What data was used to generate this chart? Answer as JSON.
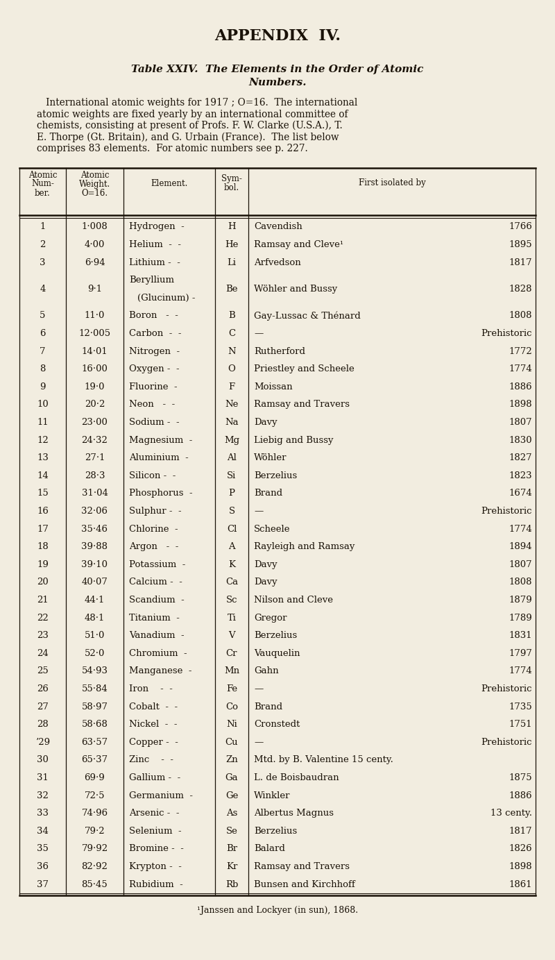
{
  "bg_color": "#f2ede0",
  "text_color": "#1a1208",
  "appendix_title": "APPENDIX  IV.",
  "table_title_line1": "Table XXIV.  The Elements in the Order of Atomic",
  "table_title_line2": "Numbers.",
  "intro_line1": "   International atomic weights for 1917 ; O=16.  The international",
  "intro_line2": "atomic weights are fixed yearly by an international committee of",
  "intro_line3": "chemists, consisting at present of Profs. F. W. Clarke (U.S.A.), T.",
  "intro_line4": "E. Thorpe (Gt. Britain), and G. Urbain (France).  The list below",
  "intro_line5": "comprises 83 elements.  For atomic numbers see p. 227.",
  "col_headers": [
    "Atomic\nNum-\nber.",
    "Atomic\nWeight.\nO=16.",
    "Element.",
    "Sym-\nbol.",
    "First isolated by"
  ],
  "footnote": "¹Janssen and Lockyer (in sun), 1868.",
  "rows": [
    [
      "1",
      "1·008",
      "Hydrogen",
      "-",
      "H",
      "Cavendish",
      "1766"
    ],
    [
      "2",
      "4·00",
      "Helium  -",
      "-",
      "He",
      "Ramsay and Cleve¹",
      "1895"
    ],
    [
      "3",
      "6·94",
      "Lithium -",
      "-",
      "Li",
      "Arfvedson",
      "1817"
    ],
    [
      "4",
      "9·1",
      "Beryllium",
      "",
      "Be",
      "Wöhler and Bussy",
      "1828"
    ],
    [
      "5",
      "11·0",
      "Boron   -",
      "-",
      "B",
      "Gay-Lussac & Thénard",
      "1808"
    ],
    [
      "6",
      "12·005",
      "Carbon  -",
      "-",
      "C",
      "—",
      "Prehistoric"
    ],
    [
      "7",
      "14·01",
      "Nitrogen",
      "-",
      "N",
      "Rutherford",
      "1772"
    ],
    [
      "8",
      "16·00",
      "Oxygen -",
      "-",
      "O",
      "Priestley and Scheele",
      "1774"
    ],
    [
      "9",
      "19·0",
      "Fluorine",
      "-",
      "F",
      "Moissan",
      "1886"
    ],
    [
      "10",
      "20·2",
      "Neon   -",
      "-",
      "Ne",
      "Ramsay and Travers",
      "1898"
    ],
    [
      "11",
      "23·00",
      "Sodium -",
      "-",
      "Na",
      "Davy",
      "1807"
    ],
    [
      "12",
      "24·32",
      "Magnesium",
      "-",
      "Mg",
      "Liebig and Bussy",
      "1830"
    ],
    [
      "13",
      "27·1",
      "Aluminium",
      "-",
      "Al",
      "Wöhler",
      "1827"
    ],
    [
      "14",
      "28·3",
      "Silicon -",
      "-",
      "Si",
      "Berzelius",
      "1823"
    ],
    [
      "15",
      "31·04",
      "Phosphorus",
      "-",
      "P",
      "Brand",
      "1674"
    ],
    [
      "16",
      "32·06",
      "Sulphur -",
      "-",
      "S",
      "—",
      "Prehistoric"
    ],
    [
      "17",
      "35·46",
      "Chlorine",
      "-",
      "Cl",
      "Scheele",
      "1774"
    ],
    [
      "18",
      "39·88",
      "Argon   -",
      "-",
      "A",
      "Rayleigh and Ramsay",
      "1894"
    ],
    [
      "19",
      "39·10",
      "Potassium",
      "-",
      "K",
      "Davy",
      "1807"
    ],
    [
      "20",
      "40·07",
      "Calcium -",
      "-",
      "Ca",
      "Davy",
      "1808"
    ],
    [
      "21",
      "44·1",
      "Scandium",
      "-",
      "Sc",
      "Nilson and Cleve",
      "1879"
    ],
    [
      "22",
      "48·1",
      "Titanium",
      "-",
      "Ti",
      "Gregor",
      "1789"
    ],
    [
      "23",
      "51·0",
      "Vanadium",
      "-",
      "V",
      "Berzelius",
      "1831"
    ],
    [
      "24",
      "52·0",
      "Chromium",
      "-",
      "Cr",
      "Vauquelin",
      "1797"
    ],
    [
      "25",
      "54·93",
      "Manganese",
      "-",
      "Mn",
      "Gahn",
      "1774"
    ],
    [
      "26",
      "55·84",
      "Iron    -",
      "-",
      "Fe",
      "—",
      "Prehistoric"
    ],
    [
      "27",
      "58·97",
      "Cobalt  -",
      "-",
      "Co",
      "Brand",
      "1735"
    ],
    [
      "28",
      "58·68",
      "Nickel  -",
      "-",
      "Ni",
      "Cronstedt",
      "1751"
    ],
    [
      "’29",
      "63·57",
      "Copper -",
      "-",
      "Cu",
      "—",
      "Prehistoric"
    ],
    [
      "30",
      "65·37",
      "Zinc    -",
      "-",
      "Zn",
      "Mtd. by B. Valentine 15 centy.",
      ""
    ],
    [
      "31",
      "69·9",
      "Gallium -",
      "-",
      "Ga",
      "L. de Boisbaudran",
      "1875"
    ],
    [
      "32",
      "72·5",
      "Germanium",
      "-",
      "Ge",
      "Winkler",
      "1886"
    ],
    [
      "33",
      "74·96",
      "Arsenic -",
      "-",
      "As",
      "Albertus Magnus",
      "13 centy."
    ],
    [
      "34",
      "79·2",
      "Selenium",
      "-",
      "Se",
      "Berzelius",
      "1817"
    ],
    [
      "35",
      "79·92",
      "Bromine -",
      "-",
      "Br",
      "Balard",
      "1826"
    ],
    [
      "36",
      "82·92",
      "Krypton -",
      "-",
      "Kr",
      "Ramsay and Travers",
      "1898"
    ],
    [
      "37",
      "85·45",
      "Rubidium",
      "-",
      "Rb",
      "Bunsen and Kirchhoff",
      "1861"
    ]
  ]
}
